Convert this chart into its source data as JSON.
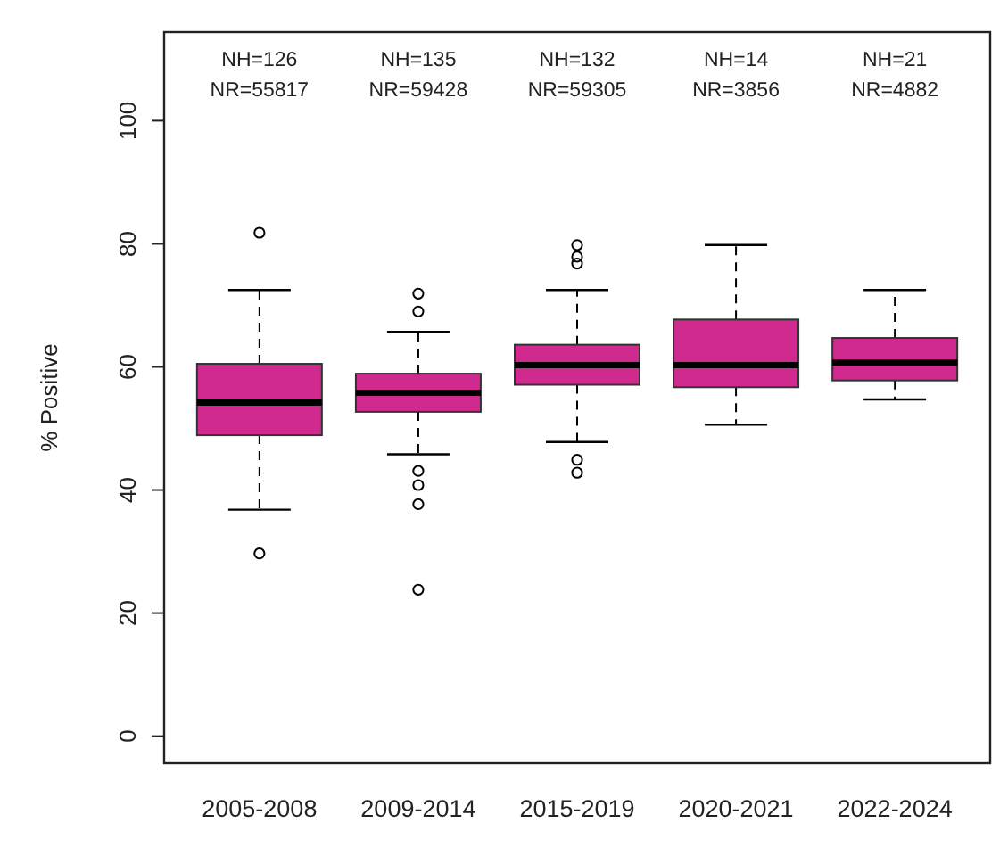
{
  "chart_data": {
    "type": "box",
    "ylabel": "% Positive",
    "categories": [
      "2005-2008",
      "2009-2014",
      "2015-2019",
      "2020-2021",
      "2022-2024"
    ],
    "color": "#d02a8e",
    "boxes": [
      {
        "low": 36.8,
        "q1": 48.9,
        "median": 54.2,
        "q3": 60.5,
        "high": 72.5,
        "outliers": [
          81.8,
          29.7
        ]
      },
      {
        "low": 45.8,
        "q1": 52.7,
        "median": 55.8,
        "q3": 58.9,
        "high": 65.7,
        "outliers": [
          71.9,
          69,
          43.1,
          40.8,
          37.7,
          23.8
        ]
      },
      {
        "low": 47.8,
        "q1": 57.1,
        "median": 60.3,
        "q3": 63.6,
        "high": 72.5,
        "outliers": [
          79.8,
          77.9,
          76.8,
          44.9,
          42.8
        ]
      },
      {
        "low": 50.6,
        "q1": 56.7,
        "median": 60.3,
        "q3": 67.7,
        "high": 79.8
      },
      {
        "low": 54.7,
        "q1": 57.8,
        "median": 60.7,
        "q3": 64.7,
        "high": 72.5
      }
    ],
    "annotations": [
      "NH=126\nNR=55817",
      "NH=135\nNR=59428",
      "NH=132\nNR=59305",
      "NH=14\nNR=3856",
      "NH=21\nNR=4882"
    ],
    "ylim": [
      -4.4,
      114.4
    ],
    "yticks": [
      0,
      20,
      40,
      60,
      80,
      100
    ],
    "grid": false
  }
}
